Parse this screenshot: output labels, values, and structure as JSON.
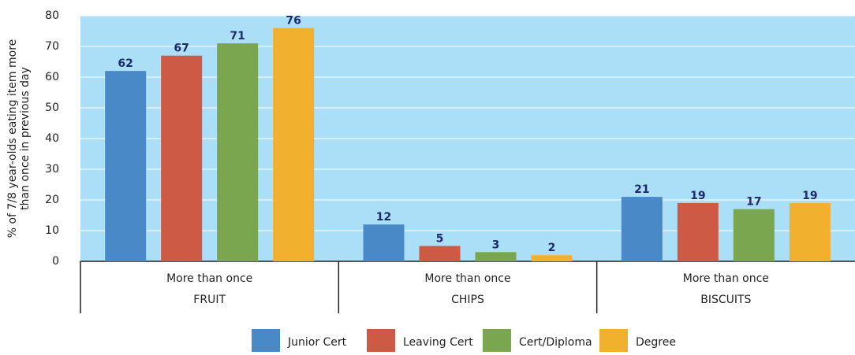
{
  "chart_data": {
    "type": "bar",
    "ylabel": [
      "% of 7/8 year-olds eating item more",
      "than once in previous day"
    ],
    "category_sublabels": [
      "More than once",
      "More than once",
      "More than once"
    ],
    "categories": [
      "FRUIT",
      "CHIPS",
      "BISCUITS"
    ],
    "series": [
      {
        "name": "Junior Cert",
        "color": "#4a89c8",
        "values": [
          62,
          12,
          21
        ]
      },
      {
        "name": "Leaving Cert",
        "color": "#cc5a44",
        "values": [
          67,
          5,
          19
        ]
      },
      {
        "name": "Cert/Diploma",
        "color": "#7aa650",
        "values": [
          71,
          3,
          17
        ]
      },
      {
        "name": "Degree",
        "color": "#f2b02f",
        "values": [
          76,
          2,
          19
        ]
      }
    ],
    "ylim": [
      0,
      80
    ],
    "yticks": [
      0,
      10,
      20,
      30,
      40,
      50,
      60,
      70,
      80
    ],
    "plot_background": "#aadff7"
  }
}
